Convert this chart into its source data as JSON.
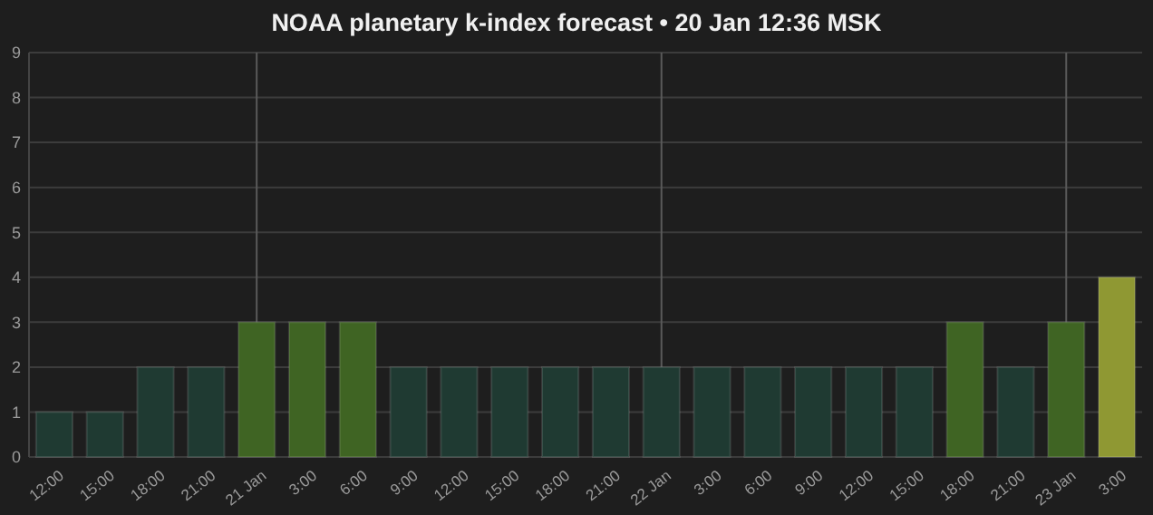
{
  "chart_data": {
    "type": "bar",
    "title": "NOAA planetary k-index forecast • 20 Jan 12:36 MSK",
    "categories": [
      "12:00",
      "15:00",
      "18:00",
      "21:00",
      "21 Jan",
      "3:00",
      "6:00",
      "9:00",
      "12:00",
      "15:00",
      "18:00",
      "21:00",
      "22 Jan",
      "3:00",
      "6:00",
      "9:00",
      "12:00",
      "15:00",
      "18:00",
      "21:00",
      "23 Jan",
      "3:00"
    ],
    "values": [
      1,
      1,
      2,
      2,
      3,
      3,
      3,
      2,
      2,
      2,
      2,
      2,
      2,
      2,
      2,
      2,
      2,
      2,
      3,
      2,
      3,
      4
    ],
    "colors": [
      "#1f3a32",
      "#1f3a32",
      "#1f3a32",
      "#1f3a32",
      "#3f6423",
      "#3f6423",
      "#3f6423",
      "#1f3a32",
      "#1f3a32",
      "#1f3a32",
      "#1f3a32",
      "#1f3a32",
      "#1f3a32",
      "#1f3a32",
      "#1f3a32",
      "#1f3a32",
      "#1f3a32",
      "#1f3a32",
      "#3f6423",
      "#1f3a32",
      "#3f6423",
      "#8f9833"
    ],
    "ylim": [
      0,
      9
    ],
    "yticks": [
      0,
      1,
      2,
      3,
      4,
      5,
      6,
      7,
      8,
      9
    ],
    "grid": "y",
    "ref_lines": [
      {
        "axis": "x",
        "value": "21 Jan"
      },
      {
        "axis": "x",
        "value": "22 Jan"
      },
      {
        "axis": "x",
        "value": "23 Jan"
      }
    ]
  }
}
